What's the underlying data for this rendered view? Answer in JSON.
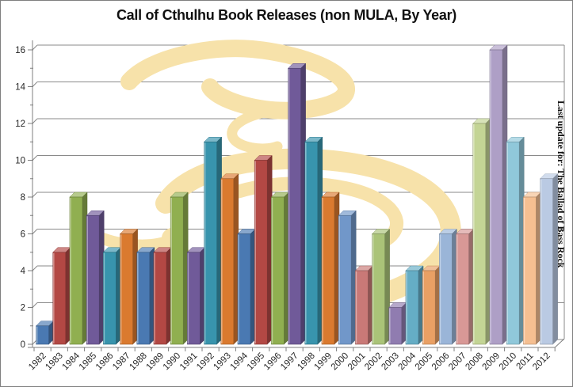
{
  "title": "Call of Cthulhu Book Releases (non MULA, By Year)",
  "side_note": "Last update for: The Ballad of Bass Rock",
  "chart_data": {
    "type": "bar",
    "title": "Call of Cthulhu Book Releases (non MULA, By Year)",
    "xlabel": "",
    "ylabel": "",
    "categories": [
      "1982",
      "1983",
      "1984",
      "1985",
      "1986",
      "1987",
      "1988",
      "1989",
      "1990",
      "1991",
      "1992",
      "1993",
      "1994",
      "1995",
      "1996",
      "1997",
      "1998",
      "1999",
      "2000",
      "2001",
      "2002",
      "2003",
      "2004",
      "2005",
      "2006",
      "2007",
      "2008",
      "2009",
      "2010",
      "2011",
      "2012"
    ],
    "values": [
      1,
      5,
      8,
      7,
      5,
      6,
      5,
      5,
      8,
      5,
      11,
      9,
      6,
      10,
      8,
      15,
      11,
      8,
      7,
      4,
      6,
      2,
      4,
      4,
      6,
      6,
      12,
      16,
      11,
      8,
      9
    ],
    "ylim": [
      0,
      16
    ],
    "ytick_step": 2,
    "y_ticks": [
      0,
      2,
      4,
      6,
      8,
      10,
      12,
      14,
      16
    ],
    "grid": true,
    "legend": false,
    "style": "3d-column, vary colors by point",
    "colors": {
      "palette_base": [
        "#4A79B2",
        "#B34844",
        "#90AF50",
        "#705A99",
        "#3894AD",
        "#DA7A2F"
      ],
      "palette_light1": [
        "#7197C9",
        "#C97977",
        "#AAC378",
        "#907CB0",
        "#65ADC5",
        "#E9A064"
      ],
      "palette_light2": [
        "#9AB5D8",
        "#D89896",
        "#C3D495",
        "#AE9FC6",
        "#90C8DA",
        "#F5BF91"
      ],
      "palette_light3": [
        "#BACAE3",
        "#E6BCBB",
        "#D7E3BD",
        "#CAC0DB",
        "#B8DDE9",
        "#FAD9B9"
      ],
      "gridline": "#8a8a8a",
      "axis": "#7f7f7f",
      "tick_label": "#262626",
      "watermark": "#F7E2AA",
      "background": "#ffffff"
    }
  }
}
